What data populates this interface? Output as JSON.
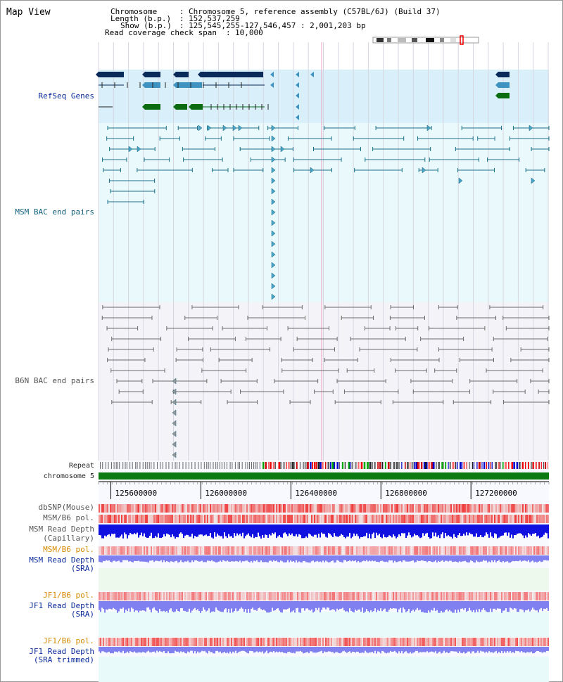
{
  "header": {
    "title": "Map View",
    "chromosome_key": "Chromosome",
    "chromosome_val": "Chromosome 5, reference assembly (C57BL/6J) (Build 37)",
    "length_key": "Length (b.p.)",
    "length_val": "152,537,259",
    "show_key": "Show (b.p.)",
    "show_val": "125,545,255-127,546,457 : 2,001,203 bp",
    "coverage_key": "Read coverage check span",
    "coverage_val": "10,000"
  },
  "tracks": {
    "refseq": "RefSeq Genes",
    "msm_bac": "MSM BAC end pairs",
    "b6n_bac": "B6N BAC end pairs",
    "repeat": "Repeat",
    "chromosome": "chromosome 5",
    "dbsnp": "dbSNP(Mouse)",
    "msm_b6_pol_1": "MSM/B6 pol.",
    "msm_read_depth_cap_1": "MSM Read Depth",
    "msm_read_depth_cap_2": "(Capillary)",
    "msm_b6_pol_2": "MSM/B6 pol.",
    "msm_read_depth_sra_1": "MSM Read Depth",
    "msm_read_depth_sra_2": "(SRA)",
    "jf1_b6_pol_1": "JF1/B6 pol.",
    "jf1_read_depth_sra_1": "JF1 Read Depth",
    "jf1_read_depth_sra_2": "(SRA)",
    "jf1_b6_pol_2": "JF1/B6 pol.",
    "jf1_read_depth_trim_1": "JF1 Read Depth",
    "jf1_read_depth_trim_2": "(SRA trimmed)"
  },
  "axis": {
    "ticks": [
      "125600000",
      "126000000",
      "126400000",
      "126800000",
      "127200000"
    ],
    "tick_positions_bp": [
      125600000,
      126000000,
      126400000,
      126800000,
      127200000
    ],
    "start_bp": 125545255,
    "end_bp": 127546457
  },
  "colors": {
    "refseq_bg": "#d9f0fa",
    "msm_bg": "#eaf9fb",
    "b6n_bg": "#f4f4f8",
    "gene_dark": "#0a2a5a",
    "gene_mid": "#3f93c0",
    "gene_green": "#0b6b10",
    "msm_pair": "#1a6f8a",
    "b6n_pair": "#6a6a6a",
    "chromosome_bar": "#0b7a10",
    "snp": "#f07070",
    "depth_blue": "#1010e0",
    "depth_light": "#8080f0"
  }
}
